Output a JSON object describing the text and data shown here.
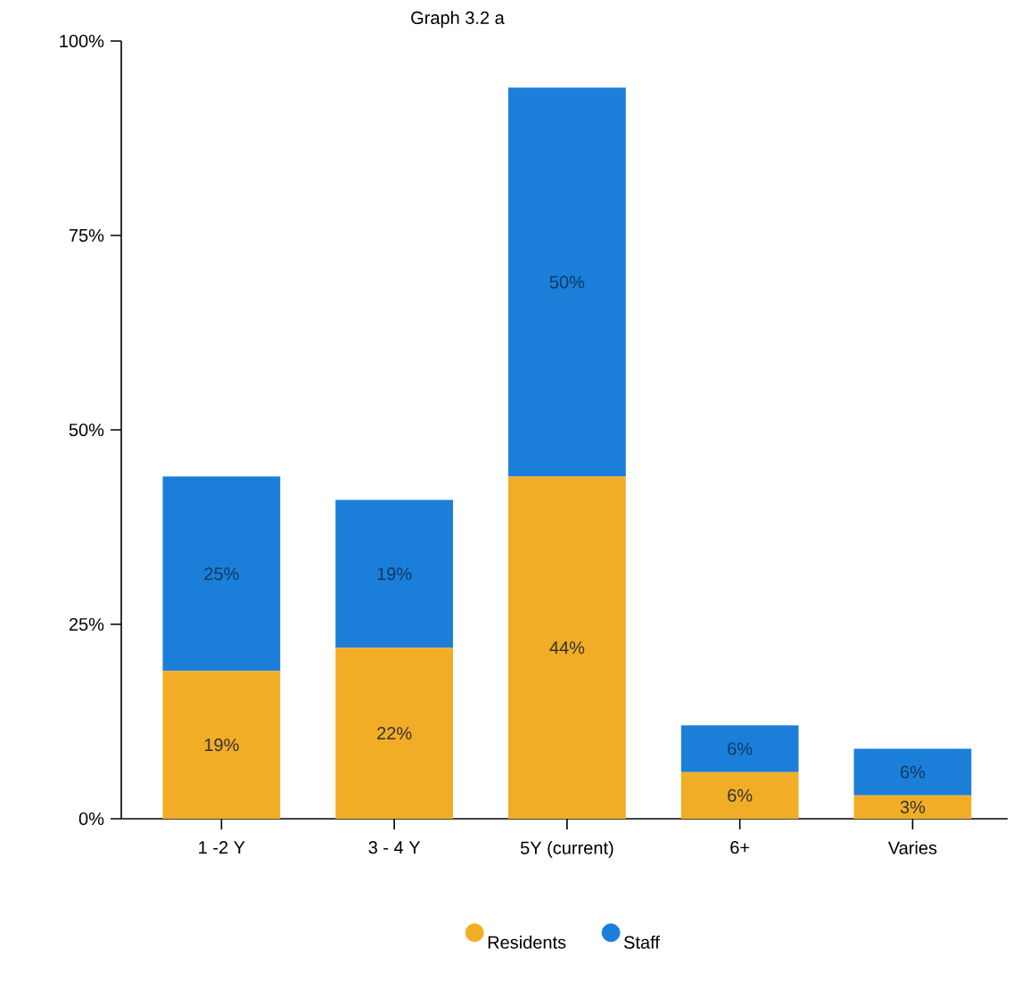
{
  "chart_data": {
    "type": "bar",
    "stacked": true,
    "title": "Graph 3.2 a",
    "categories": [
      "1 -2 Y",
      "3 - 4 Y",
      "5Y (current)",
      "6+",
      "Varies"
    ],
    "series": [
      {
        "name": "Residents",
        "color": "#f2ad26",
        "values": [
          19,
          22,
          44,
          6,
          3
        ],
        "value_labels": [
          "19%",
          "22%",
          "44%",
          "6%",
          "3%"
        ]
      },
      {
        "name": "Staff",
        "color": "#1b7fd9",
        "values": [
          25,
          19,
          50,
          6,
          6
        ],
        "value_labels": [
          "25%",
          "19%",
          "50%",
          "6%",
          "6%"
        ]
      }
    ],
    "ylim": [
      0,
      100
    ],
    "yticks": [
      {
        "value": 0,
        "label": "0%"
      },
      {
        "value": 25,
        "label": "25%"
      },
      {
        "value": 50,
        "label": "50%"
      },
      {
        "value": 75,
        "label": "75%"
      },
      {
        "value": 100,
        "label": "100%"
      }
    ],
    "grid": false,
    "legend": "bottom"
  }
}
